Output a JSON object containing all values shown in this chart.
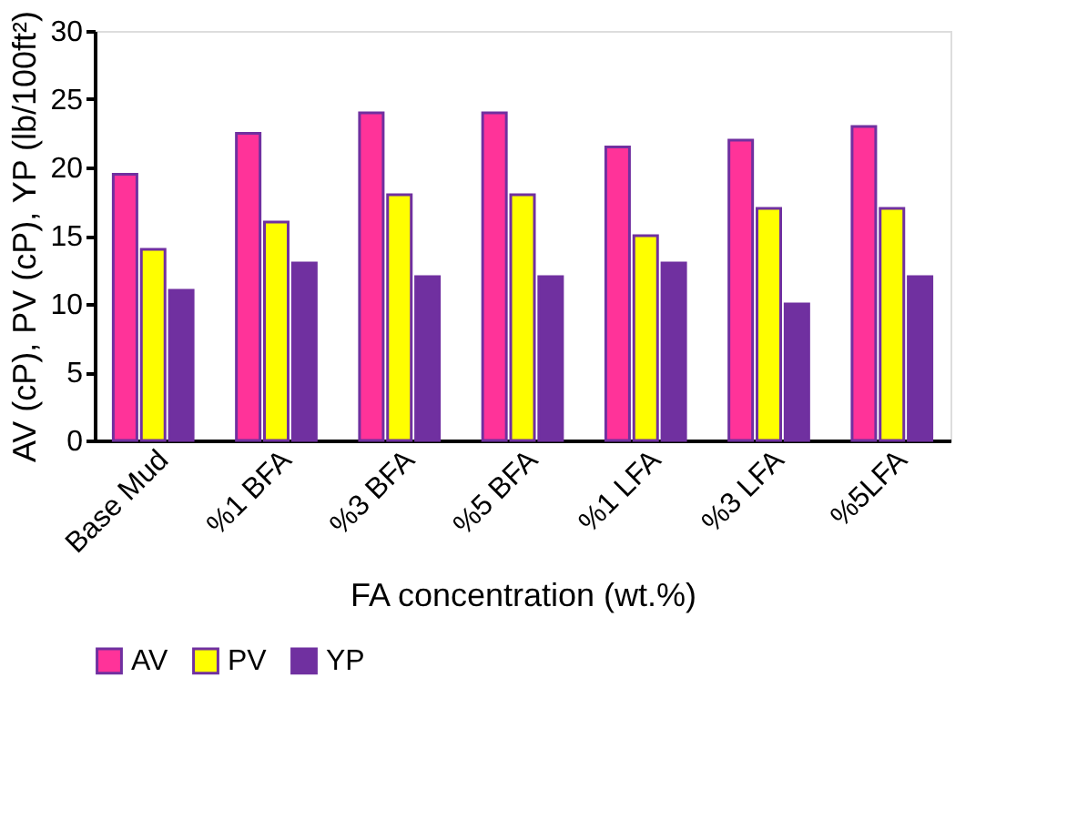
{
  "chart_data": {
    "type": "bar",
    "xlabel": "FA concentration (wt.%)",
    "ylabel": "AV (cP), PV (cP), YP (lb/100ft²)",
    "categories": [
      "Base Mud",
      "%1 BFA",
      "%3 BFA",
      "%5 BFA",
      "%1 LFA",
      "%3 LFA",
      "%5LFA"
    ],
    "series": [
      {
        "name": "AV",
        "color": "#ff3399",
        "values": [
          19.5,
          22.5,
          24,
          24,
          21.5,
          22,
          23
        ]
      },
      {
        "name": "PV",
        "color": "#ffff00",
        "values": [
          14,
          16,
          18,
          18,
          15,
          17,
          17
        ]
      },
      {
        "name": "YP",
        "color": "#7030a0",
        "values": [
          11,
          13,
          12,
          12,
          13,
          10,
          12
        ]
      }
    ],
    "ylim": [
      0,
      30
    ],
    "yticks": [
      0,
      5,
      10,
      15,
      20,
      25,
      30
    ],
    "grid": false,
    "legend": "bottom"
  }
}
